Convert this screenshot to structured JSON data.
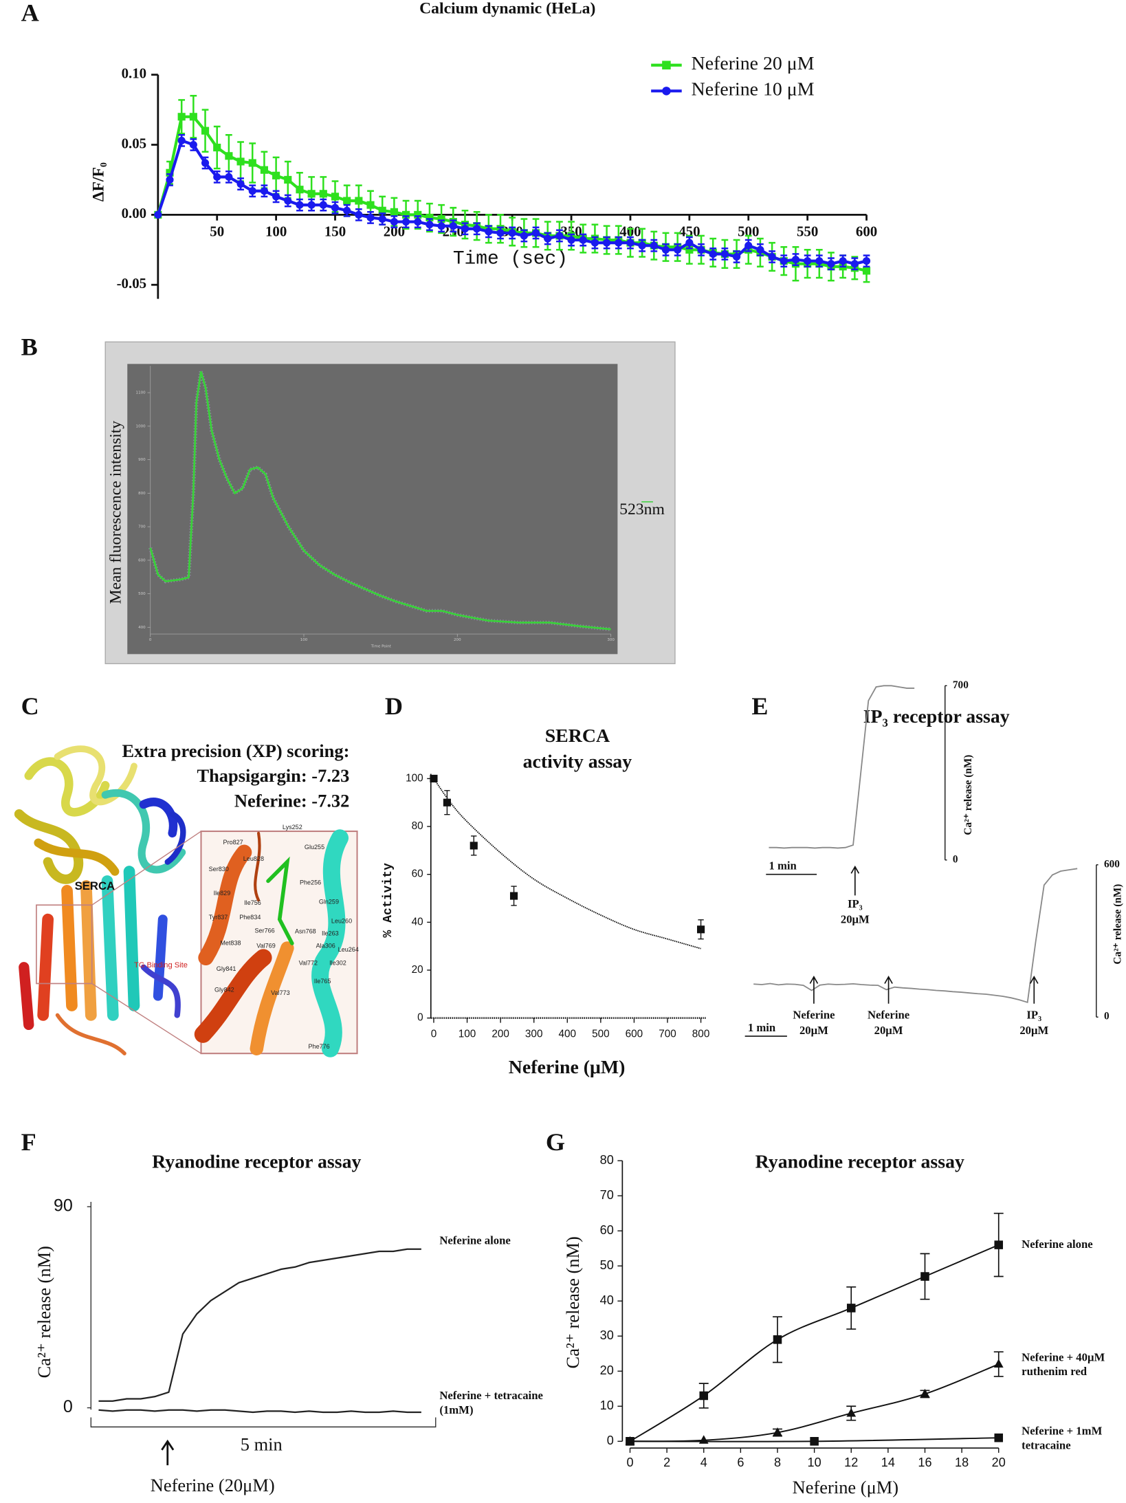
{
  "chart_data": [
    {
      "type": "line",
      "panel": "A",
      "title": "Calcium dynamic (HeLa)",
      "xlabel": "Time (sec)",
      "ylabel": "ΔF/F₀",
      "x": [
        0,
        10,
        20,
        30,
        40,
        50,
        60,
        70,
        80,
        90,
        100,
        110,
        120,
        130,
        140,
        150,
        160,
        170,
        180,
        190,
        200,
        210,
        220,
        230,
        240,
        250,
        260,
        270,
        280,
        290,
        300,
        310,
        320,
        330,
        340,
        350,
        360,
        370,
        380,
        390,
        400,
        410,
        420,
        430,
        440,
        450,
        460,
        470,
        480,
        490,
        500,
        510,
        520,
        530,
        540,
        550,
        560,
        570,
        580,
        590,
        600
      ],
      "series": [
        {
          "name": "Neferine 20 μM",
          "color": "#2ee01e",
          "marker": "square",
          "values": [
            0,
            0.03,
            0.07,
            0.07,
            0.06,
            0.048,
            0.042,
            0.038,
            0.037,
            0.032,
            0.028,
            0.025,
            0.018,
            0.015,
            0.015,
            0.013,
            0.01,
            0.01,
            0.007,
            0.003,
            0.002,
            0,
            0,
            -0.002,
            -0.003,
            -0.005,
            -0.007,
            -0.008,
            -0.01,
            -0.01,
            -0.012,
            -0.013,
            -0.013,
            -0.015,
            -0.015,
            -0.015,
            -0.017,
            -0.017,
            -0.018,
            -0.018,
            -0.02,
            -0.02,
            -0.022,
            -0.023,
            -0.023,
            -0.025,
            -0.025,
            -0.027,
            -0.028,
            -0.028,
            -0.025,
            -0.027,
            -0.03,
            -0.033,
            -0.035,
            -0.035,
            -0.035,
            -0.037,
            -0.037,
            -0.038,
            -0.04
          ],
          "errors": [
            0,
            0.008,
            0.012,
            0.015,
            0.015,
            0.015,
            0.015,
            0.014,
            0.014,
            0.013,
            0.013,
            0.013,
            0.012,
            0.012,
            0.012,
            0.011,
            0.011,
            0.011,
            0.01,
            0.01,
            0.01,
            0.01,
            0.01,
            0.01,
            0.01,
            0.01,
            0.01,
            0.01,
            0.01,
            0.01,
            0.01,
            0.01,
            0.01,
            0.01,
            0.01,
            0.01,
            0.01,
            0.01,
            0.01,
            0.01,
            0.01,
            0.01,
            0.01,
            0.01,
            0.01,
            0.01,
            0.01,
            0.01,
            0.01,
            0.01,
            0.01,
            0.01,
            0.01,
            0.01,
            0.012,
            0.01,
            0.01,
            0.01,
            0.008,
            0.008,
            0.008
          ]
        },
        {
          "name": "Neferine 10 μM",
          "color": "#1a1aee",
          "marker": "circle",
          "values": [
            0,
            0.025,
            0.053,
            0.05,
            0.037,
            0.027,
            0.027,
            0.022,
            0.017,
            0.017,
            0.013,
            0.01,
            0.007,
            0.007,
            0.007,
            0.005,
            0.003,
            0,
            -0.002,
            -0.003,
            -0.005,
            -0.005,
            -0.005,
            -0.007,
            -0.008,
            -0.008,
            -0.01,
            -0.01,
            -0.012,
            -0.013,
            -0.013,
            -0.015,
            -0.013,
            -0.017,
            -0.015,
            -0.018,
            -0.018,
            -0.02,
            -0.02,
            -0.02,
            -0.02,
            -0.022,
            -0.022,
            -0.025,
            -0.025,
            -0.02,
            -0.025,
            -0.028,
            -0.028,
            -0.03,
            -0.022,
            -0.025,
            -0.03,
            -0.033,
            -0.032,
            -0.033,
            -0.033,
            -0.035,
            -0.033,
            -0.035,
            -0.033
          ],
          "errors": [
            0,
            0.004,
            0.004,
            0.004,
            0.004,
            0.004,
            0.004,
            0.004,
            0.004,
            0.004,
            0.004,
            0.004,
            0.004,
            0.004,
            0.004,
            0.004,
            0.004,
            0.004,
            0.004,
            0.004,
            0.004,
            0.004,
            0.004,
            0.004,
            0.004,
            0.004,
            0.004,
            0.004,
            0.004,
            0.004,
            0.004,
            0.004,
            0.004,
            0.004,
            0.004,
            0.004,
            0.004,
            0.004,
            0.004,
            0.004,
            0.004,
            0.004,
            0.004,
            0.004,
            0.004,
            0.004,
            0.004,
            0.004,
            0.004,
            0.004,
            0.004,
            0.004,
            0.004,
            0.004,
            0.004,
            0.004,
            0.004,
            0.004,
            0.004,
            0.004,
            0.004
          ]
        }
      ],
      "xlim": [
        0,
        600
      ],
      "xticks": [
        50,
        100,
        150,
        200,
        250,
        300,
        350,
        400,
        450,
        500,
        550,
        600
      ],
      "ylim": [
        -0.06,
        0.1
      ],
      "yticks": [
        {
          "value": 0.1,
          "label": "0.10"
        },
        0.05,
        {
          "value": 0,
          "label": "0.00"
        },
        -0.05
      ],
      "legend": "top-right"
    },
    {
      "type": "line",
      "panel": "B",
      "ylabel": "Mean fluorescence intensity",
      "xlabel": "Time Point",
      "x": [
        0,
        5,
        10,
        15,
        20,
        25,
        28,
        30,
        33,
        36,
        40,
        45,
        50,
        55,
        60,
        65,
        70,
        75,
        80,
        90,
        100,
        110,
        120,
        130,
        140,
        150,
        160,
        170,
        180,
        190,
        200,
        220,
        240,
        260,
        280,
        300
      ],
      "series": [
        {
          "name": "523nm",
          "color": "#3ad13a",
          "values": [
            637,
            557,
            537,
            540,
            543,
            549,
            800,
            1071,
            1163,
            1114,
            986,
            900,
            843,
            800,
            814,
            871,
            877,
            857,
            786,
            700,
            629,
            586,
            557,
            534,
            514,
            494,
            477,
            463,
            449,
            449,
            437,
            420,
            414,
            414,
            403,
            394
          ]
        }
      ],
      "xlim": [
        0,
        300
      ],
      "xticks": [
        0,
        100,
        200,
        300
      ],
      "ylim": [
        380,
        1180
      ],
      "yticks": [
        400,
        500,
        600,
        700,
        800,
        900,
        1000,
        1100
      ]
    },
    {
      "type": "scatter",
      "panel": "D",
      "title": [
        "SERCA",
        "activity assay"
      ],
      "xlabel": "Neferine (μM)",
      "ylabel": "% Activity",
      "x": [
        0,
        40,
        120,
        240,
        800
      ],
      "values": [
        100,
        90,
        72,
        51,
        37
      ],
      "errors": [
        0,
        5,
        4,
        4,
        4
      ],
      "color": "#111111",
      "fit": {
        "x": [
          0,
          50,
          100,
          200,
          300,
          400,
          500,
          600,
          700,
          800
        ],
        "values": [
          100,
          90,
          82,
          69,
          58,
          50,
          43,
          37,
          33,
          29
        ]
      },
      "xlim": [
        0,
        800
      ],
      "xticks": [
        0,
        100,
        200,
        300,
        400,
        500,
        600,
        700,
        800
      ],
      "ylim": [
        0,
        100
      ],
      "yticks": [
        0,
        20,
        40,
        60,
        80,
        100
      ]
    },
    {
      "type": "trace",
      "panel": "E",
      "title": "IP₃ receptor assay",
      "color": "#888888",
      "traces": [
        {
          "ylabel": "Ca²⁺ release (nM)",
          "scale_bar": "1 min",
          "ylim": [
            0,
            700
          ],
          "yticks": [
            700,
            0
          ],
          "values": [
            50,
            50,
            48,
            50,
            50,
            50,
            48,
            50,
            50,
            48,
            50,
            60,
            350,
            640,
            695,
            700,
            700,
            695,
            690,
            690
          ],
          "arrows": [
            [
              "IP₃",
              "20μM"
            ]
          ]
        },
        {
          "ylabel": "Ca²⁺ release (nM)",
          "scale_bar": "1 min",
          "ylim": [
            0,
            600
          ],
          "yticks": [
            600,
            0
          ],
          "values": [
            130,
            128,
            132,
            127,
            130,
            129,
            125,
            105,
            126,
            130,
            128,
            129,
            131,
            128,
            126,
            125,
            108,
            118,
            115,
            113,
            110,
            108,
            105,
            103,
            100,
            98,
            95,
            92,
            90,
            86,
            82,
            76,
            68,
            58,
            300,
            520,
            560,
            575,
            580,
            585
          ],
          "arrows": [
            [
              "Neferine",
              "20μM"
            ],
            [
              "Neferine",
              "20μM"
            ],
            [
              "IP₃",
              "20μM"
            ]
          ]
        }
      ]
    },
    {
      "type": "trace",
      "panel": "F",
      "title": "Ryanodine receptor assay",
      "ylabel": "Ca²⁺ release (nM)",
      "scale_bar": "5 min",
      "stimulus": "Neferine (20μM)",
      "ylim": [
        0,
        90
      ],
      "yticks": [
        90,
        0
      ],
      "series": [
        {
          "name": "Neferine alone",
          "color": "#222222",
          "values": [
            3,
            3,
            4,
            4,
            5,
            7,
            33,
            42,
            48,
            52,
            56,
            58,
            60,
            62,
            63,
            65,
            66,
            67,
            68,
            69,
            70,
            70,
            71,
            71
          ]
        },
        {
          "name": "Neferine + tetracaine (1mM)",
          "color": "#222222",
          "values": [
            -1,
            -1.5,
            -1,
            -1,
            -1.5,
            -1,
            -1,
            -1.5,
            -1,
            -1,
            -1.5,
            -2,
            -1.5,
            -1.5,
            -2,
            -1.5,
            -2,
            -2,
            -1.5,
            -2,
            -2,
            -1.5,
            -2,
            -2
          ]
        }
      ]
    },
    {
      "type": "line",
      "panel": "G",
      "title": "Ryanodine receptor assay",
      "xlabel": "Neferine (μM)",
      "ylabel": "Ca²⁺ release (nM)",
      "series": [
        {
          "name": "Neferine alone",
          "color": "#111111",
          "marker": "square",
          "x": [
            0,
            4,
            8,
            12,
            16,
            20
          ],
          "values": [
            0,
            13,
            29,
            38,
            47,
            56
          ],
          "errors": [
            0,
            3.5,
            6.5,
            6,
            6.5,
            9
          ]
        },
        {
          "name": "Neferine + 40μM ruthenim red",
          "color": "#111111",
          "marker": "triangle",
          "x": [
            0,
            4,
            8,
            12,
            16,
            20
          ],
          "values": [
            0,
            0.3,
            2.5,
            8,
            13.5,
            22
          ],
          "errors": [
            0,
            0,
            1,
            2,
            1,
            3.5
          ]
        },
        {
          "name": "Neferine + 1mM tetracaine",
          "color": "#111111",
          "marker": "square",
          "x": [
            0,
            10,
            20
          ],
          "values": [
            0,
            0,
            1
          ],
          "errors": [
            0,
            0,
            0
          ]
        }
      ],
      "xlim": [
        0,
        20
      ],
      "xticks": [
        0,
        2,
        4,
        6,
        8,
        10,
        12,
        14,
        16,
        18,
        20
      ],
      "ylim": [
        0,
        80
      ],
      "yticks": [
        0,
        10,
        20,
        30,
        40,
        50,
        60,
        70,
        80
      ]
    }
  ],
  "panel_c": {
    "label": "C",
    "heading": "Extra precision (XP) scoring:",
    "scores": [
      "Thapsigargin: -7.23",
      "Neferine: -7.32"
    ],
    "structure_label": "SERCA",
    "site_label": "TG Binding Site",
    "residues": [
      "Lys252",
      "Glu255",
      "Pro827",
      "Leu828",
      "Ser830",
      "Phe256",
      "Ile829",
      "Ile756",
      "Gln259",
      "Tyr837",
      "Phe834",
      "Leu260",
      "Ser766",
      "Asn768",
      "Ile263",
      "Met838",
      "Val769",
      "Ala306",
      "Leu264",
      "Gly841",
      "Val772",
      "Ile302",
      "Gly842",
      "Val773",
      "Ile765",
      "Phe776"
    ]
  }
}
